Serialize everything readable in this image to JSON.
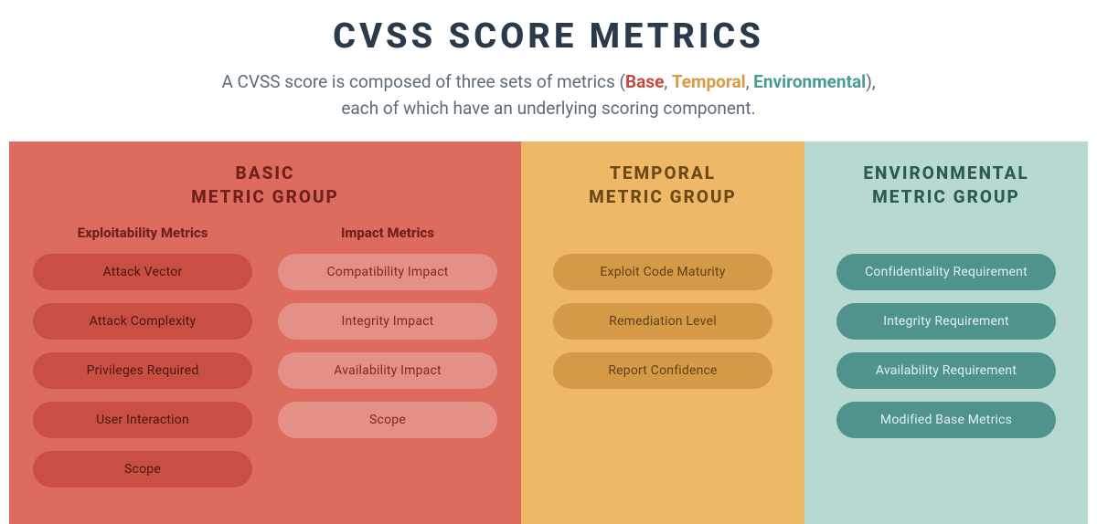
{
  "title": "CVSS SCORE METRICS",
  "subtitle": {
    "pre": "A CVSS score is composed of three sets of metrics (",
    "base": "Base",
    "sep1": ", ",
    "temporal": "Temporal",
    "sep2": ", ",
    "environmental": "Environmental",
    "post": "),",
    "line2": "each of which have an underlying scoring component."
  },
  "colors": {
    "title_text": "#2a3a4a",
    "subtitle_text": "#5b6b78",
    "base_accent": "#c44a3f",
    "temporal_accent": "#d99a46",
    "env_accent": "#4a9b95",
    "basic_bg": "#dd6c5e",
    "basic_heading_text": "#6f201b",
    "basic_left_pill_bg": "#c84f42",
    "basic_left_pill_text": "#4a1612",
    "basic_right_pill_bg": "#e59086",
    "basic_right_pill_text": "#7a2a22",
    "temporal_bg": "#eeb867",
    "temporal_heading_text": "#6a4a17",
    "temporal_pill_bg": "#d49a47",
    "temporal_pill_text": "#624114",
    "env_bg": "#b7d9d1",
    "env_heading_text": "#2c5a55",
    "env_pill_bg": "#4f938c",
    "env_pill_text": "#dff1ee"
  },
  "groups": {
    "basic": {
      "title_line1": "BASIC",
      "title_line2": "METRIC GROUP",
      "left": {
        "heading": "Exploitability Metrics",
        "items": [
          "Attack Vector",
          "Attack Complexity",
          "Privileges Required",
          "User Interaction",
          "Scope"
        ]
      },
      "right": {
        "heading": "Impact Metrics",
        "items": [
          "Compatibility Impact",
          "Integrity Impact",
          "Availability Impact",
          "Scope"
        ]
      }
    },
    "temporal": {
      "title_line1": "TEMPORAL",
      "title_line2": "METRIC GROUP",
      "items": [
        "Exploit Code Maturity",
        "Remediation Level",
        "Report Confidence"
      ]
    },
    "environmental": {
      "title_line1": "ENVIRONMENTAL",
      "title_line2": "METRIC GROUP",
      "items": [
        "Confidentiality Requirement",
        "Integrity Requirement",
        "Availability Requirement",
        "Modified Base Metrics"
      ]
    }
  }
}
